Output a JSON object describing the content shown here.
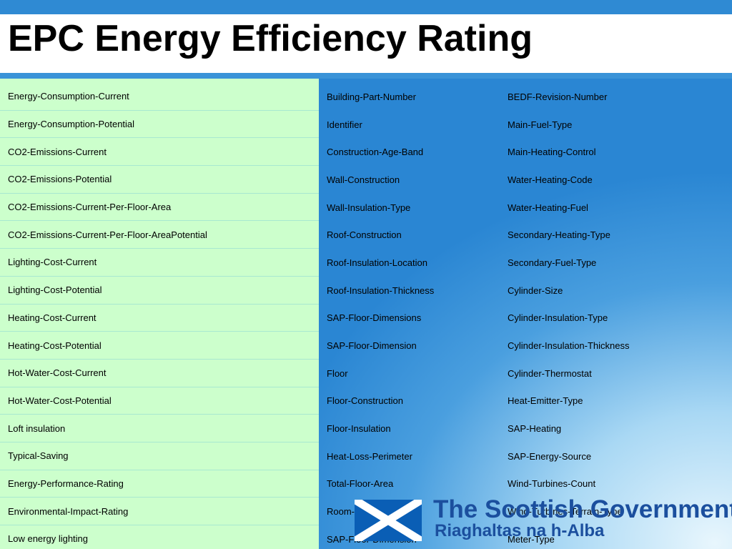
{
  "slide": {
    "title": "EPC Energy Efficiency Rating"
  },
  "columns": {
    "left": [
      "Energy-Consumption-Current",
      "Energy-Consumption-Potential",
      "CO2-Emissions-Current",
      "CO2-Emissions-Potential",
      "CO2-Emissions-Current-Per-Floor-Area",
      "CO2-Emissions-Current-Per-Floor-AreaPotential",
      "Lighting-Cost-Current",
      "Lighting-Cost-Potential",
      "Heating-Cost-Current",
      "Heating-Cost-Potential",
      "Hot-Water-Cost-Current",
      "Hot-Water-Cost-Potential",
      "Loft insulation",
      "Typical-Saving",
      "Energy-Performance-Rating",
      "Environmental-Impact-Rating",
      "Low energy lighting"
    ],
    "middle": [
      "Building-Part-Number",
      "Identifier",
      "Construction-Age-Band",
      "Wall-Construction",
      "Wall-Insulation-Type",
      "Roof-Construction",
      "Roof-Insulation-Location",
      "Roof-Insulation-Thickness",
      "SAP-Floor-Dimensions",
      "SAP-Floor-Dimension",
      "Floor",
      "Floor-Construction",
      "Floor-Insulation",
      "Heat-Loss-Perimeter",
      "Total-Floor-Area",
      "Room-Height",
      "SAP-Floor-Dimension"
    ],
    "right": [
      "BEDF-Revision-Number",
      "Main-Fuel-Type",
      "Main-Heating-Control",
      "Water-Heating-Code",
      "Water-Heating-Fuel",
      "Secondary-Heating-Type",
      "Secondary-Fuel-Type",
      "Cylinder-Size",
      "Cylinder-Insulation-Type",
      "Cylinder-Insulation-Thickness",
      "Cylinder-Thermostat",
      "Heat-Emitter-Type",
      "SAP-Heating",
      "SAP-Energy-Source",
      "Wind-Turbines-Count",
      "Wind-Turbines-Terrain-Type",
      "Meter-Type"
    ]
  },
  "logo": {
    "line1": "The Scottish Government",
    "line2": "Riaghaltas na h-Alba",
    "flag_icon": "saltire-flag-icon"
  },
  "colors": {
    "title_bar": "#ffffff",
    "slide_blue": "#2a86d3",
    "left_column_fill": "#ccffcc",
    "logo_text": "#1b4f9e"
  }
}
